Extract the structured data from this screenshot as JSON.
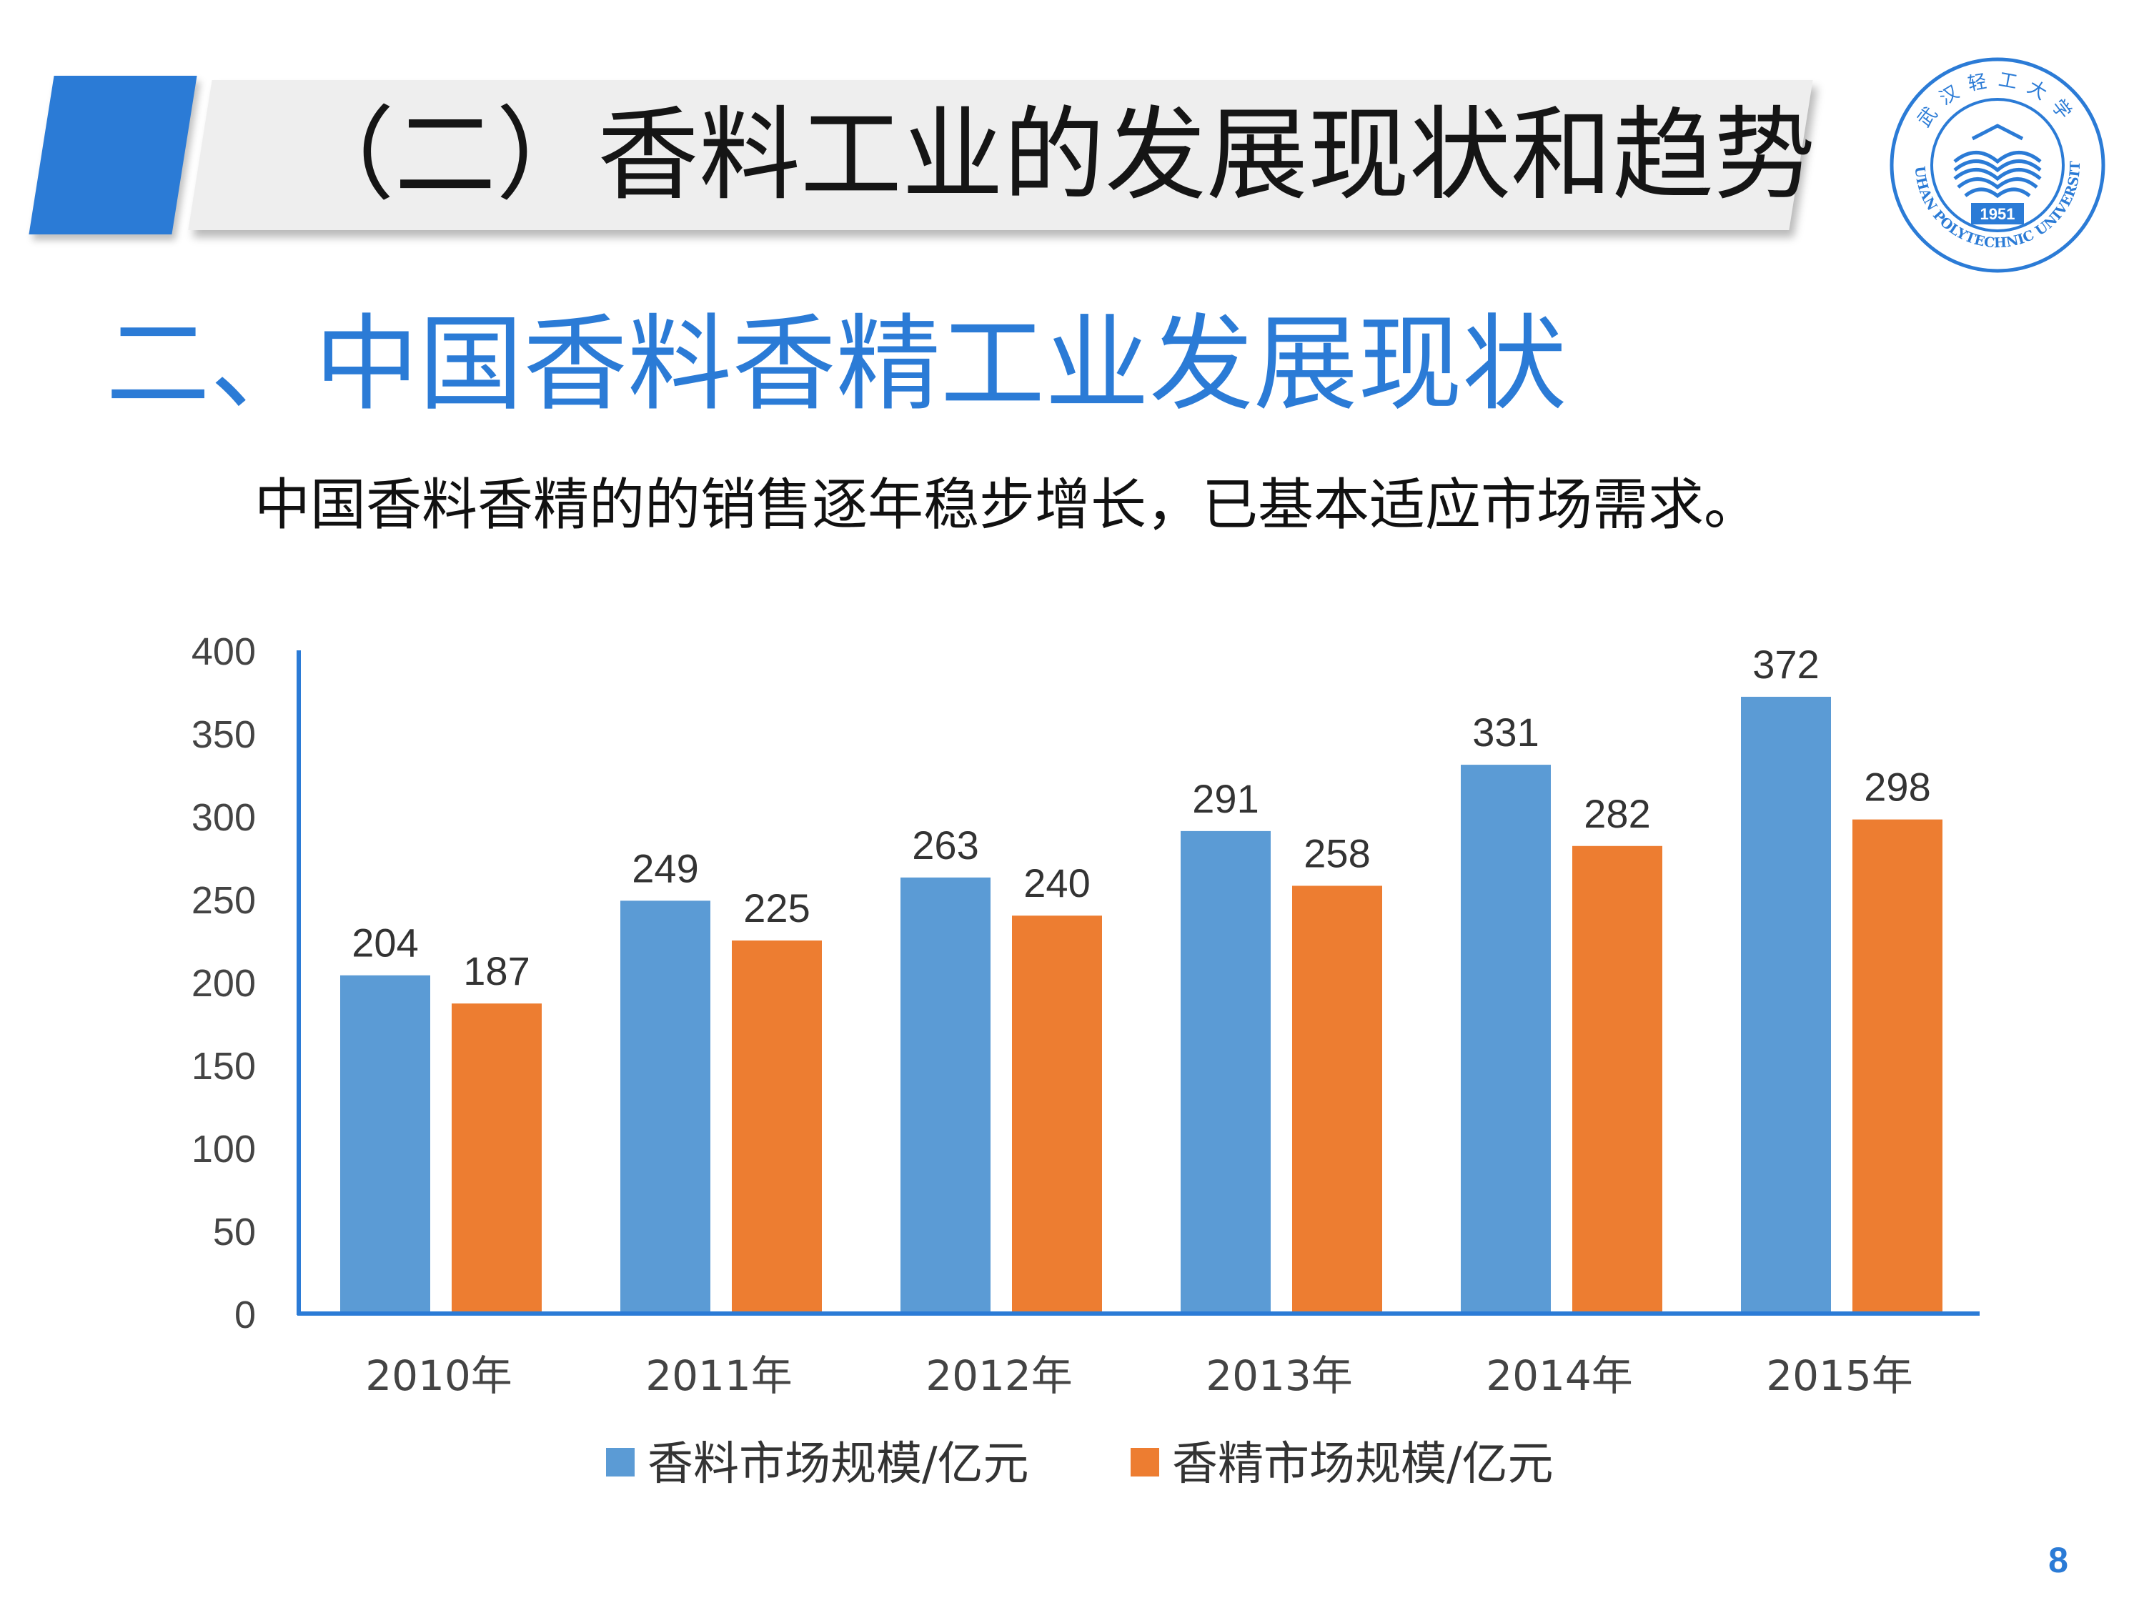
{
  "slide": {
    "title": "（二）香料工业的发展现状和趋势",
    "heading": "二、中国香料香精工业发展现状",
    "subtitle": "中国香料香精的的销售逐年稳步增长，已基本适应市场需求。",
    "page_number": "8"
  },
  "logo": {
    "chinese_name": "武汉轻工大学",
    "english_name": "WUHAN POLYTECHNIC UNIVERSITY",
    "year": "1951"
  },
  "colors": {
    "accent": "#2b7bd6",
    "series_1": "#5b9bd5",
    "series_2": "#ed7d31",
    "axis": "#2b7bd6"
  },
  "chart_data": {
    "type": "bar",
    "categories": [
      "2010年",
      "2011年",
      "2012年",
      "2013年",
      "2014年",
      "2015年"
    ],
    "series": [
      {
        "name": "香料市场规模/亿元",
        "values": [
          204,
          249,
          263,
          291,
          331,
          372
        ]
      },
      {
        "name": "香精市场规模/亿元",
        "values": [
          187,
          225,
          240,
          258,
          282,
          298
        ]
      }
    ],
    "y_ticks": [
      0,
      50,
      100,
      150,
      200,
      250,
      300,
      350,
      400
    ],
    "ylim": [
      0,
      400
    ],
    "title": "",
    "xlabel": "",
    "ylabel": "",
    "legend_position": "bottom",
    "grid": false,
    "data_labels": true
  }
}
